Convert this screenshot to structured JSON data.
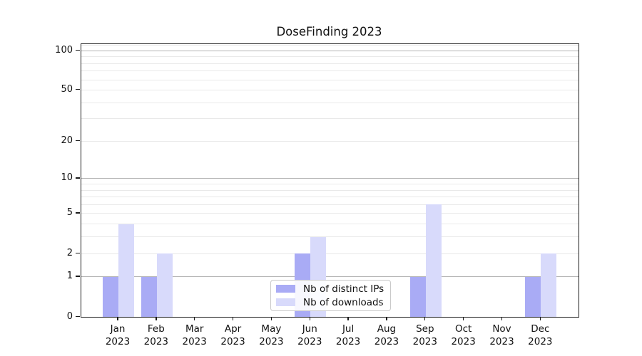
{
  "chart_data": {
    "type": "bar",
    "title": "DoseFinding 2023",
    "categories": [
      {
        "month": "Jan",
        "year": "2023"
      },
      {
        "month": "Feb",
        "year": "2023"
      },
      {
        "month": "Mar",
        "year": "2023"
      },
      {
        "month": "Apr",
        "year": "2023"
      },
      {
        "month": "May",
        "year": "2023"
      },
      {
        "month": "Jun",
        "year": "2023"
      },
      {
        "month": "Jul",
        "year": "2023"
      },
      {
        "month": "Aug",
        "year": "2023"
      },
      {
        "month": "Sep",
        "year": "2023"
      },
      {
        "month": "Oct",
        "year": "2023"
      },
      {
        "month": "Nov",
        "year": "2023"
      },
      {
        "month": "Dec",
        "year": "2023"
      }
    ],
    "series": [
      {
        "name": "Nb of distinct IPs",
        "color": "#a9abf5",
        "values": [
          1,
          1,
          0,
          0,
          0,
          2,
          0,
          0,
          1,
          0,
          0,
          1
        ]
      },
      {
        "name": "Nb of downloads",
        "color": "#d8dafb",
        "values": [
          4,
          2,
          0,
          0,
          0,
          3,
          0,
          0,
          6,
          0,
          0,
          2
        ]
      }
    ],
    "xlabel": "",
    "ylabel": "",
    "y_axis": {
      "scale": "log10(1+x)",
      "ticks": [
        0,
        1,
        2,
        5,
        10,
        20,
        50,
        100
      ],
      "major_gridlines": [
        1,
        10,
        100
      ],
      "minor_gridlines": [
        2,
        3,
        4,
        5,
        6,
        7,
        8,
        9,
        20,
        30,
        40,
        50,
        60,
        70,
        80,
        90,
        110
      ],
      "ylim_top_approx": 113
    },
    "grid": true,
    "legend_position": "bottom-center",
    "colors": {
      "major_grid": "#b4b4b4",
      "minor_grid": "#e9e9e9",
      "spine": "#1a1a1a",
      "background": "#ffffff"
    }
  }
}
